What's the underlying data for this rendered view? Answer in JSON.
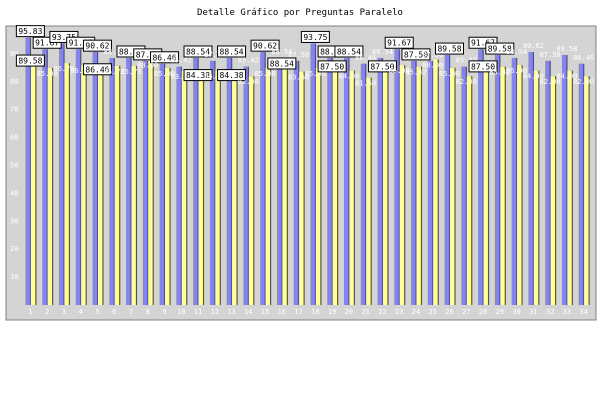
{
  "chart_data": {
    "type": "bar",
    "title": "Detalle Gráfico por Preguntas Paralelo",
    "xlabel": "",
    "ylabel": "",
    "ylim": [
      0,
      100
    ],
    "yticks": [
      10,
      20,
      30,
      40,
      50,
      60,
      70,
      80,
      90
    ],
    "grid": false,
    "categories": [
      "1",
      "2",
      "3",
      "4",
      "5",
      "6",
      "7",
      "8",
      "9",
      "10",
      "11",
      "12",
      "13",
      "14",
      "15",
      "16",
      "17",
      "18",
      "19",
      "20",
      "21",
      "22",
      "23",
      "24",
      "25",
      "26",
      "27",
      "28",
      "29",
      "30",
      "31",
      "32",
      "33",
      "34"
    ],
    "series": [
      {
        "color": "#8484f0",
        "values": [
          95.83,
          91.67,
          93.75,
          91.67,
          90.62,
          88.54,
          88.54,
          87.5,
          86.46,
          85.42,
          88.54,
          87.5,
          88.54,
          85.42,
          90.62,
          88.54,
          87.5,
          93.75,
          88.54,
          88.54,
          86.46,
          88.54,
          91.67,
          87.5,
          87.5,
          89.58,
          85.42,
          91.67,
          89.58,
          88.54,
          90.62,
          87.5,
          89.58,
          86.46
        ],
        "boxed": [
          true,
          true,
          true,
          true,
          true,
          false,
          true,
          true,
          true,
          false,
          true,
          false,
          true,
          false,
          true,
          false,
          false,
          true,
          true,
          true,
          false,
          false,
          true,
          true,
          false,
          true,
          false,
          true,
          true,
          false,
          false,
          false,
          false,
          false
        ]
      },
      {
        "color": "#ffff99",
        "values": [
          89.58,
          85.0,
          86.7,
          86.0,
          86.46,
          85.73,
          85.73,
          88.0,
          85.0,
          83.86,
          84.38,
          84.0,
          84.38,
          82.0,
          85.0,
          88.54,
          83.66,
          85.0,
          87.5,
          84.0,
          81.5,
          87.5,
          86.0,
          85.42,
          88.0,
          85.0,
          82.0,
          87.5,
          85.42,
          86.0,
          84.0,
          82.0,
          84.0,
          82.0
        ],
        "boxed": [
          true,
          false,
          false,
          false,
          true,
          false,
          false,
          false,
          false,
          false,
          true,
          false,
          true,
          false,
          false,
          true,
          false,
          false,
          true,
          false,
          false,
          true,
          false,
          false,
          false,
          false,
          false,
          true,
          false,
          false,
          false,
          false,
          false,
          false
        ]
      }
    ]
  }
}
